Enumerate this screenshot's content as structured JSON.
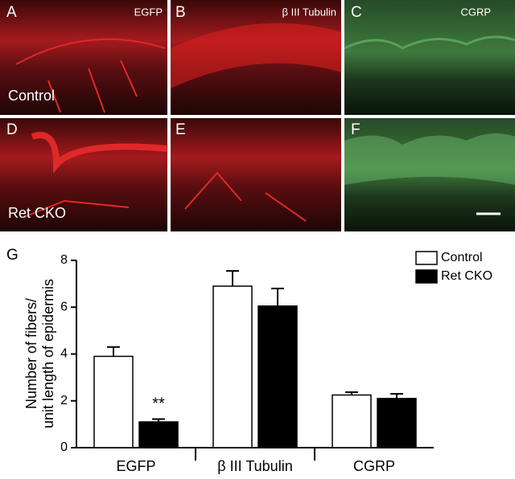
{
  "figure": {
    "panels": [
      {
        "letter": "A",
        "marker": "EGFP"
      },
      {
        "letter": "B",
        "marker": "β III Tubulin"
      },
      {
        "letter": "C",
        "marker": "CGRP"
      },
      {
        "letter": "D"
      },
      {
        "letter": "E"
      },
      {
        "letter": "F"
      }
    ],
    "row_labels": [
      "Control",
      "Ret CKO"
    ]
  },
  "chart_data": {
    "type": "bar",
    "panel_label": "G",
    "ylabel": [
      "Number of fibers/",
      "unit length of epidermis"
    ],
    "categories": [
      "EGFP",
      "β III Tubulin",
      "CGRP"
    ],
    "series": [
      {
        "name": "Control",
        "color": "#ffffff",
        "values": [
          3.9,
          6.9,
          2.25
        ],
        "errors": [
          0.4,
          0.65,
          0.12
        ]
      },
      {
        "name": "Ret CKO",
        "color": "#000000",
        "values": [
          1.1,
          6.05,
          2.1
        ],
        "errors": [
          0.12,
          0.75,
          0.2
        ]
      }
    ],
    "annotation": "**",
    "ylim": [
      0,
      8
    ],
    "yticks": [
      0,
      2,
      4,
      6,
      8
    ],
    "legend": "upper right"
  }
}
